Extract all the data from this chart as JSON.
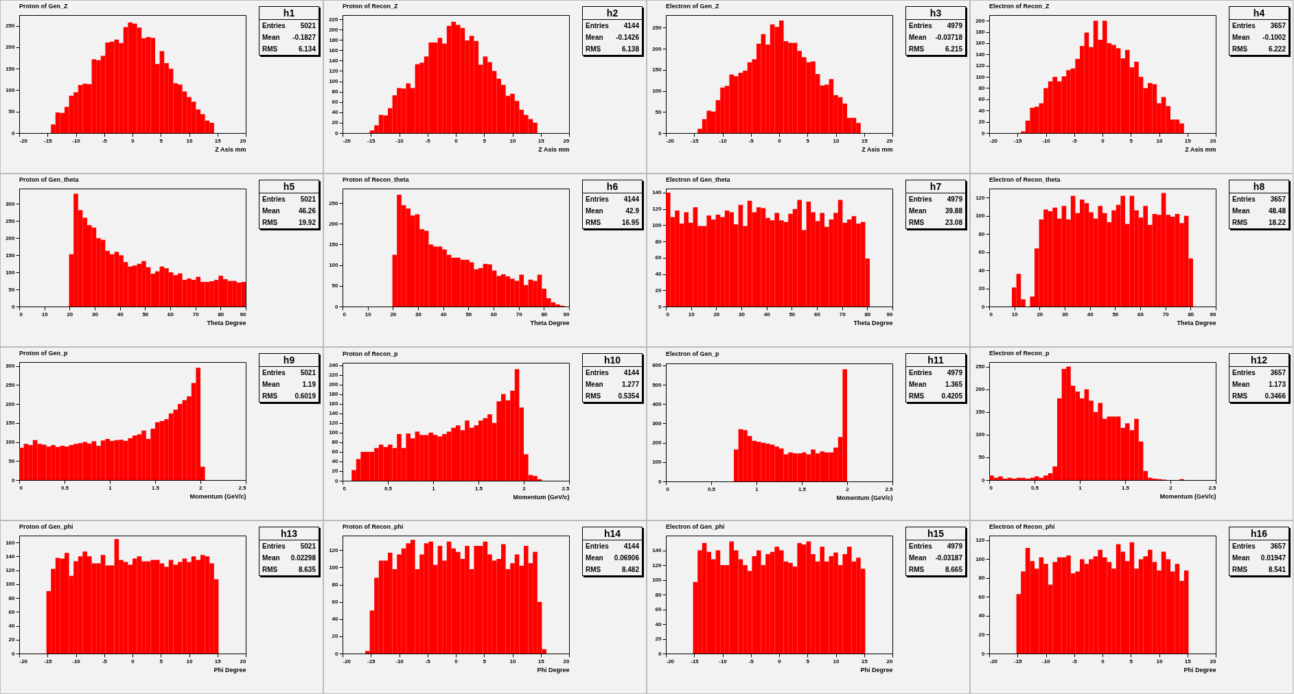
{
  "chart_data": [
    {
      "type": "histogram",
      "title": "Proton of Gen_Z",
      "xlabel": "Z Asis mm",
      "color": "#ff0000",
      "xlim": [
        -20,
        20
      ],
      "xticks": [
        -20,
        -15,
        -10,
        -5,
        0,
        5,
        10,
        15,
        20
      ],
      "ylim": [
        0,
        275
      ],
      "yticks": [
        0,
        50,
        100,
        150,
        200,
        250
      ],
      "annotations": [
        "h1",
        "Entries",
        "5021",
        "Mean",
        "-0.1827",
        "RMS",
        "6.134"
      ],
      "bins": [
        -20,
        -19.2,
        -18.4,
        -17.6,
        -16.8,
        -16,
        -15.2,
        -14.4,
        -13.6,
        -12.8,
        -12,
        -11.2,
        -10.4,
        -9.6,
        -8.8,
        -8,
        -7.2,
        -6.4,
        -5.6,
        -4.8,
        -4,
        -3.2,
        -2.4,
        -1.6,
        -0.8,
        0,
        0.8,
        1.6,
        2.4,
        3.2,
        4,
        4.8,
        5.6,
        6.4,
        7.2,
        8,
        8.8,
        9.6,
        10.4,
        11.2,
        12,
        12.8,
        13.6,
        14.4,
        15.2,
        16,
        16.8,
        17.6,
        18.4,
        19.2,
        20
      ],
      "values": [
        0,
        0,
        0,
        0,
        0,
        0,
        0,
        20,
        48,
        47,
        61,
        87,
        95,
        112,
        115,
        114,
        172,
        170,
        180,
        211,
        213,
        218,
        210,
        247,
        258,
        255,
        246,
        221,
        224,
        222,
        161,
        191,
        163,
        150,
        116,
        113,
        97,
        84,
        73,
        55,
        44,
        29,
        24,
        0,
        0,
        0,
        0,
        0,
        0,
        0
      ]
    },
    {
      "type": "histogram",
      "title": "Proton of Recon_Z",
      "xlabel": "Z Asis mm",
      "color": "#ff0000",
      "xlim": [
        -20,
        20
      ],
      "xticks": [
        -20,
        -15,
        -10,
        -5,
        0,
        5,
        10,
        15,
        20
      ],
      "ylim": [
        0,
        228
      ],
      "yticks": [
        0,
        20,
        40,
        60,
        80,
        100,
        120,
        140,
        160,
        180,
        200,
        220
      ],
      "annotations": [
        "h2",
        "Entries",
        "4144",
        "Mean",
        "-0.1426",
        "RMS",
        "6.138"
      ],
      "bins": [
        -20,
        -19.2,
        -18.4,
        -17.6,
        -16.8,
        -16,
        -15.2,
        -14.4,
        -13.6,
        -12.8,
        -12,
        -11.2,
        -10.4,
        -9.6,
        -8.8,
        -8,
        -7.2,
        -6.4,
        -5.6,
        -4.8,
        -4,
        -3.2,
        -2.4,
        -1.6,
        -0.8,
        0,
        0.8,
        1.6,
        2.4,
        3.2,
        4,
        4.8,
        5.6,
        6.4,
        7.2,
        8,
        8.8,
        9.6,
        10.4,
        11.2,
        12,
        12.8,
        13.6,
        14.4,
        15.2,
        16,
        16.8,
        17.6,
        18.4,
        19.2,
        20
      ],
      "values": [
        0,
        0,
        0,
        0,
        0,
        0,
        5,
        15,
        35,
        34,
        48,
        73,
        87,
        86,
        96,
        87,
        133,
        136,
        148,
        175,
        175,
        184,
        173,
        207,
        215,
        209,
        203,
        179,
        188,
        178,
        132,
        148,
        137,
        120,
        105,
        93,
        72,
        76,
        62,
        45,
        35,
        27,
        20,
        0,
        0,
        0,
        0,
        0,
        0,
        0
      ]
    },
    {
      "type": "histogram",
      "title": "Electron of Gen_Z",
      "xlabel": "Z Asis mm",
      "color": "#ff0000",
      "xlim": [
        -20,
        20
      ],
      "xticks": [
        -20,
        -15,
        -10,
        -5,
        0,
        5,
        10,
        15,
        20
      ],
      "ylim": [
        0,
        280
      ],
      "yticks": [
        0,
        50,
        100,
        150,
        200,
        250
      ],
      "annotations": [
        "h3",
        "Entries",
        "4979",
        "Mean",
        "-0.03718",
        "RMS",
        "6.215"
      ],
      "bins": [
        -20,
        -19.2,
        -18.4,
        -17.6,
        -16.8,
        -16,
        -15.2,
        -14.4,
        -13.6,
        -12.8,
        -12,
        -11.2,
        -10.4,
        -9.6,
        -8.8,
        -8,
        -7.2,
        -6.4,
        -5.6,
        -4.8,
        -4,
        -3.2,
        -2.4,
        -1.6,
        -0.8,
        0,
        0.8,
        1.6,
        2.4,
        3.2,
        4,
        4.8,
        5.6,
        6.4,
        7.2,
        8,
        8.8,
        9.6,
        10.4,
        11.2,
        12,
        12.8,
        13.6,
        14.4,
        15.2,
        16,
        16.8,
        17.6,
        18.4,
        19.2,
        20
      ],
      "values": [
        0,
        0,
        0,
        0,
        0,
        0,
        0,
        10,
        33,
        53,
        51,
        78,
        108,
        112,
        139,
        135,
        143,
        148,
        168,
        175,
        212,
        235,
        210,
        258,
        252,
        267,
        218,
        214,
        214,
        195,
        180,
        168,
        170,
        140,
        113,
        115,
        128,
        90,
        85,
        70,
        36,
        36,
        24,
        0,
        0,
        0,
        0,
        0,
        0,
        0
      ]
    },
    {
      "type": "histogram",
      "title": "Electron of Recon_Z",
      "xlabel": "Z Asis mm",
      "color": "#ff0000",
      "xlim": [
        -20,
        20
      ],
      "xticks": [
        -20,
        -15,
        -10,
        -5,
        0,
        5,
        10,
        15,
        20
      ],
      "ylim": [
        0,
        210
      ],
      "yticks": [
        0,
        20,
        40,
        60,
        80,
        100,
        120,
        140,
        160,
        180,
        200
      ],
      "annotations": [
        "h4",
        "Entries",
        "3657",
        "Mean",
        "-0.1002",
        "RMS",
        "6.222"
      ],
      "bins": [
        -20,
        -19.2,
        -18.4,
        -17.6,
        -16.8,
        -16,
        -15.2,
        -14.4,
        -13.6,
        -12.8,
        -12,
        -11.2,
        -10.4,
        -9.6,
        -8.8,
        -8,
        -7.2,
        -6.4,
        -5.6,
        -4.8,
        -4,
        -3.2,
        -2.4,
        -1.6,
        -0.8,
        0,
        0.8,
        1.6,
        2.4,
        3.2,
        4,
        4.8,
        5.6,
        6.4,
        7.2,
        8,
        8.8,
        9.6,
        10.4,
        11.2,
        12,
        12.8,
        13.6,
        14.4,
        15.2,
        16,
        16.8,
        17.6,
        18.4,
        19.2,
        20
      ],
      "values": [
        0,
        0,
        0,
        0,
        0,
        0,
        0,
        3,
        22,
        45,
        47,
        53,
        80,
        92,
        100,
        92,
        101,
        112,
        115,
        132,
        155,
        179,
        153,
        200,
        166,
        200,
        160,
        157,
        151,
        133,
        148,
        117,
        127,
        100,
        80,
        89,
        87,
        53,
        64,
        48,
        24,
        24,
        17,
        0,
        0,
        0,
        0,
        0,
        0,
        0
      ]
    },
    {
      "type": "histogram",
      "title": "Proton of Gen_theta",
      "xlabel": "Theta Degree",
      "color": "#ff0000",
      "xlim": [
        0,
        90
      ],
      "xticks": [
        0,
        10,
        20,
        30,
        40,
        50,
        60,
        70,
        80,
        90
      ],
      "ylim": [
        0,
        345
      ],
      "yticks": [
        0,
        50,
        100,
        150,
        200,
        250,
        300
      ],
      "annotations": [
        "h5",
        "Entries",
        "5021",
        "Mean",
        "46.26",
        "RMS",
        "19.92"
      ],
      "bins": [
        0,
        1.8,
        3.6,
        5.4,
        7.2,
        9,
        10.8,
        12.6,
        14.4,
        16.2,
        18,
        19.8,
        21.6,
        23.4,
        25.2,
        27,
        28.8,
        30.6,
        32.4,
        34.2,
        36,
        37.8,
        39.6,
        41.4,
        43.2,
        45,
        46.8,
        48.6,
        50.4,
        52.2,
        54,
        55.8,
        57.6,
        59.4,
        61.2,
        63,
        64.8,
        66.6,
        68.4,
        70.2,
        72,
        73.8,
        75.6,
        77.4,
        79.2,
        81,
        82.8,
        84.6,
        86.4,
        88.2,
        90
      ],
      "values": [
        0,
        0,
        0,
        0,
        0,
        0,
        0,
        0,
        0,
        0,
        0,
        153,
        330,
        282,
        260,
        238,
        231,
        200,
        195,
        163,
        153,
        160,
        150,
        130,
        117,
        120,
        125,
        133,
        115,
        96,
        103,
        117,
        112,
        100,
        92,
        97,
        78,
        82,
        78,
        87,
        72,
        72,
        74,
        78,
        90,
        80,
        75,
        75,
        70,
        72
      ]
    },
    {
      "type": "histogram",
      "title": "Proton of Recon_theta",
      "xlabel": "Theta Degree",
      "color": "#ff0000",
      "xlim": [
        0,
        90
      ],
      "xticks": [
        0,
        10,
        20,
        30,
        40,
        50,
        60,
        70,
        80,
        90
      ],
      "ylim": [
        0,
        285
      ],
      "yticks": [
        0,
        50,
        100,
        150,
        200,
        250
      ],
      "annotations": [
        "h6",
        "Entries",
        "4144",
        "Mean",
        "42.9",
        "RMS",
        "16.95"
      ],
      "bins": [
        0,
        1.8,
        3.6,
        5.4,
        7.2,
        9,
        10.8,
        12.6,
        14.4,
        16.2,
        18,
        19.8,
        21.6,
        23.4,
        25.2,
        27,
        28.8,
        30.6,
        32.4,
        34.2,
        36,
        37.8,
        39.6,
        41.4,
        43.2,
        45,
        46.8,
        48.6,
        50.4,
        52.2,
        54,
        55.8,
        57.6,
        59.4,
        61.2,
        63,
        64.8,
        66.6,
        68.4,
        70.2,
        72,
        73.8,
        75.6,
        77.4,
        79.2,
        81,
        82.8,
        84.6,
        86.4,
        88.2,
        90
      ],
      "values": [
        0,
        0,
        0,
        0,
        0,
        0,
        0,
        0,
        0,
        0,
        0,
        125,
        270,
        245,
        237,
        220,
        223,
        187,
        183,
        150,
        145,
        145,
        138,
        125,
        118,
        118,
        113,
        113,
        107,
        90,
        93,
        103,
        102,
        87,
        74,
        78,
        73,
        67,
        62,
        77,
        52,
        65,
        62,
        77,
        43,
        20,
        10,
        5,
        2,
        0
      ]
    },
    {
      "type": "histogram",
      "title": "Electron of Gen_theta",
      "xlabel": "Theta Degree",
      "color": "#ff0000",
      "xlim": [
        0,
        90
      ],
      "xticks": [
        0,
        10,
        20,
        30,
        40,
        50,
        60,
        70,
        80,
        90
      ],
      "ylim": [
        0,
        145
      ],
      "yticks": [
        0,
        20,
        40,
        60,
        80,
        100,
        120,
        140
      ],
      "annotations": [
        "h7",
        "Entries",
        "4979",
        "Mean",
        "39.88",
        "RMS",
        "23.08"
      ],
      "bins": [
        0,
        1.8,
        3.6,
        5.4,
        7.2,
        9,
        10.8,
        12.6,
        14.4,
        16.2,
        18,
        19.8,
        21.6,
        23.4,
        25.2,
        27,
        28.8,
        30.6,
        32.4,
        34.2,
        36,
        37.8,
        39.6,
        41.4,
        43.2,
        45,
        46.8,
        48.6,
        50.4,
        52.2,
        54,
        55.8,
        57.6,
        59.4,
        61.2,
        63,
        64.8,
        66.6,
        68.4,
        70.2,
        72,
        73.8,
        75.6,
        77.4,
        79.2,
        81,
        82.8,
        84.6,
        86.4,
        88.2,
        90
      ],
      "values": [
        140,
        110,
        118,
        102,
        116,
        103,
        122,
        99,
        99,
        112,
        107,
        113,
        110,
        118,
        116,
        101,
        125,
        99,
        130,
        116,
        122,
        121,
        109,
        106,
        115,
        106,
        104,
        114,
        120,
        131,
        94,
        129,
        116,
        105,
        115,
        98,
        107,
        115,
        131,
        103,
        107,
        111,
        102,
        104,
        59,
        0,
        0,
        0,
        0,
        0
      ]
    },
    {
      "type": "histogram",
      "title": "Electron of Recon_theta",
      "xlabel": "Theta Degree",
      "color": "#ff0000",
      "xlim": [
        0,
        90
      ],
      "xticks": [
        0,
        10,
        20,
        30,
        40,
        50,
        60,
        70,
        80,
        90
      ],
      "ylim": [
        0,
        130
      ],
      "yticks": [
        0,
        20,
        40,
        60,
        80,
        100,
        120
      ],
      "annotations": [
        "h8",
        "Entries",
        "3657",
        "Mean",
        "48.48",
        "RMS",
        "18.22"
      ],
      "bins": [
        0,
        1.8,
        3.6,
        5.4,
        7.2,
        9,
        10.8,
        12.6,
        14.4,
        16.2,
        18,
        19.8,
        21.6,
        23.4,
        25.2,
        27,
        28.8,
        30.6,
        32.4,
        34.2,
        36,
        37.8,
        39.6,
        41.4,
        43.2,
        45,
        46.8,
        48.6,
        50.4,
        52.2,
        54,
        55.8,
        57.6,
        59.4,
        61.2,
        63,
        64.8,
        66.6,
        68.4,
        70.2,
        72,
        73.8,
        75.6,
        77.4,
        79.2,
        81,
        82.8,
        84.6,
        86.4,
        88.2,
        90
      ],
      "values": [
        0,
        0,
        0,
        0,
        0,
        21,
        36,
        8,
        0,
        11,
        64,
        96,
        107,
        105,
        109,
        97,
        111,
        96,
        122,
        103,
        118,
        114,
        104,
        97,
        111,
        103,
        93,
        106,
        112,
        122,
        91,
        122,
        106,
        98,
        111,
        90,
        102,
        101,
        125,
        101,
        99,
        102,
        92,
        100,
        53,
        0,
        0,
        0,
        0,
        0
      ]
    },
    {
      "type": "histogram",
      "title": "Proton of Gen_p",
      "xlabel": "Momentum (GeV/c)",
      "color": "#ff0000",
      "xlim": [
        0,
        2.5
      ],
      "xticks": [
        0,
        0.5,
        1,
        1.5,
        2,
        2.5
      ],
      "ylim": [
        0,
        310
      ],
      "yticks": [
        0,
        50,
        100,
        150,
        200,
        250,
        300
      ],
      "annotations": [
        "h9",
        "Entries",
        "5021",
        "Mean",
        "1.19",
        "RMS",
        "0.6019"
      ],
      "bins": [
        0,
        0.05,
        0.1,
        0.15,
        0.2,
        0.25,
        0.3,
        0.35,
        0.4,
        0.45,
        0.5,
        0.55,
        0.6,
        0.65,
        0.7,
        0.75,
        0.8,
        0.85,
        0.9,
        0.95,
        1,
        1.05,
        1.1,
        1.15,
        1.2,
        1.25,
        1.3,
        1.35,
        1.4,
        1.45,
        1.5,
        1.55,
        1.6,
        1.65,
        1.7,
        1.75,
        1.8,
        1.85,
        1.9,
        1.95,
        2,
        2.05,
        2.1,
        2.15,
        2.2,
        2.25,
        2.3,
        2.35,
        2.4,
        2.45,
        2.5
      ],
      "values": [
        85,
        95,
        92,
        105,
        95,
        93,
        88,
        92,
        87,
        90,
        88,
        92,
        95,
        97,
        100,
        96,
        102,
        90,
        104,
        108,
        103,
        105,
        106,
        103,
        110,
        117,
        120,
        130,
        108,
        135,
        152,
        155,
        160,
        175,
        185,
        200,
        210,
        220,
        255,
        295,
        35,
        0,
        0,
        0,
        0,
        0,
        0,
        0,
        0,
        0
      ]
    },
    {
      "type": "histogram",
      "title": "Proton of Recon_p",
      "xlabel": "Momentum (GeV/c)",
      "color": "#ff0000",
      "xlim": [
        0,
        2.5
      ],
      "xticks": [
        0,
        0.5,
        1,
        1.5,
        2,
        2.5
      ],
      "ylim": [
        0,
        245
      ],
      "yticks": [
        0,
        20,
        40,
        60,
        80,
        100,
        120,
        140,
        160,
        180,
        200,
        220,
        240
      ],
      "annotations": [
        "h10",
        "Entries",
        "4144",
        "Mean",
        "1.277",
        "RMS",
        "0.5354"
      ],
      "bins": [
        0,
        0.05,
        0.1,
        0.15,
        0.2,
        0.25,
        0.3,
        0.35,
        0.4,
        0.45,
        0.5,
        0.55,
        0.6,
        0.65,
        0.7,
        0.75,
        0.8,
        0.85,
        0.9,
        0.95,
        1,
        1.05,
        1.1,
        1.15,
        1.2,
        1.25,
        1.3,
        1.35,
        1.4,
        1.45,
        1.5,
        1.55,
        1.6,
        1.65,
        1.7,
        1.75,
        1.8,
        1.85,
        1.9,
        1.95,
        2,
        2.05,
        2.1,
        2.15,
        2.2,
        2.25,
        2.3,
        2.35,
        2.4,
        2.45,
        2.5
      ],
      "values": [
        0,
        0,
        22,
        45,
        60,
        60,
        60,
        68,
        75,
        70,
        75,
        68,
        97,
        68,
        98,
        88,
        102,
        95,
        95,
        100,
        95,
        92,
        97,
        102,
        110,
        115,
        105,
        125,
        110,
        115,
        125,
        130,
        138,
        120,
        165,
        180,
        167,
        187,
        232,
        152,
        55,
        12,
        10,
        3,
        0,
        0,
        0,
        0,
        0,
        0
      ]
    },
    {
      "type": "histogram",
      "title": "Electron of Gen_p",
      "xlabel": "Momentum (GeV/c)",
      "color": "#ff0000",
      "xlim": [
        0,
        2.5
      ],
      "xticks": [
        0,
        0.5,
        1,
        1.5,
        2,
        2.5
      ],
      "ylim": [
        0,
        610
      ],
      "yticks": [
        0,
        100,
        200,
        300,
        400,
        500,
        600
      ],
      "annotations": [
        "h11",
        "Entries",
        "4979",
        "Mean",
        "1.365",
        "RMS",
        "0.4205"
      ],
      "bins": [
        0,
        0.05,
        0.1,
        0.15,
        0.2,
        0.25,
        0.3,
        0.35,
        0.4,
        0.45,
        0.5,
        0.55,
        0.6,
        0.65,
        0.7,
        0.75,
        0.8,
        0.85,
        0.9,
        0.95,
        1,
        1.05,
        1.1,
        1.15,
        1.2,
        1.25,
        1.3,
        1.35,
        1.4,
        1.45,
        1.5,
        1.55,
        1.6,
        1.65,
        1.7,
        1.75,
        1.8,
        1.85,
        1.9,
        1.95,
        2,
        2.05,
        2.1,
        2.15,
        2.2,
        2.25,
        2.3,
        2.35,
        2.4,
        2.45,
        2.5
      ],
      "values": [
        0,
        0,
        0,
        0,
        0,
        0,
        0,
        0,
        0,
        0,
        0,
        0,
        0,
        0,
        0,
        165,
        270,
        265,
        235,
        210,
        205,
        200,
        195,
        190,
        180,
        170,
        140,
        150,
        145,
        145,
        150,
        140,
        165,
        145,
        155,
        150,
        150,
        175,
        230,
        580,
        0,
        0,
        0,
        0,
        0,
        0,
        0,
        0,
        0,
        0
      ]
    },
    {
      "type": "histogram",
      "title": "Electron of Recon_p",
      "xlabel": "Momentum (GeV/c)",
      "color": "#ff0000",
      "xlim": [
        0,
        2.5
      ],
      "xticks": [
        0,
        0.5,
        1,
        1.5,
        2,
        2.5
      ],
      "ylim": [
        0,
        260
      ],
      "yticks": [
        0,
        50,
        100,
        150,
        200,
        250
      ],
      "annotations": [
        "h12",
        "Entries",
        "3657",
        "Mean",
        "1.173",
        "RMS",
        "0.3466"
      ],
      "bins": [
        0,
        0.05,
        0.1,
        0.15,
        0.2,
        0.25,
        0.3,
        0.35,
        0.4,
        0.45,
        0.5,
        0.55,
        0.6,
        0.65,
        0.7,
        0.75,
        0.8,
        0.85,
        0.9,
        0.95,
        1,
        1.05,
        1.1,
        1.15,
        1.2,
        1.25,
        1.3,
        1.35,
        1.4,
        1.45,
        1.5,
        1.55,
        1.6,
        1.65,
        1.7,
        1.75,
        1.8,
        1.85,
        1.9,
        1.95,
        2,
        2.05,
        2.1,
        2.15,
        2.2,
        2.25,
        2.3,
        2.35,
        2.4,
        2.45,
        2.5
      ],
      "values": [
        10,
        5,
        8,
        3,
        5,
        3,
        5,
        5,
        3,
        5,
        8,
        5,
        10,
        15,
        30,
        180,
        245,
        250,
        208,
        195,
        180,
        200,
        175,
        150,
        170,
        135,
        140,
        140,
        140,
        115,
        125,
        110,
        135,
        85,
        20,
        5,
        3,
        2,
        1,
        0,
        0,
        0,
        2,
        0,
        0,
        0,
        0,
        0,
        0,
        0
      ]
    },
    {
      "type": "histogram",
      "title": "Proton of Gen_phi",
      "xlabel": "Phi Degree",
      "color": "#ff0000",
      "xlim": [
        -20,
        20
      ],
      "xticks": [
        -20,
        -15,
        -10,
        -5,
        0,
        5,
        10,
        15,
        20
      ],
      "ylim": [
        0,
        170
      ],
      "yticks": [
        0,
        20,
        40,
        60,
        80,
        100,
        120,
        140,
        160
      ],
      "annotations": [
        "h13",
        "Entries",
        "5021",
        "Mean",
        "0.02298",
        "RMS",
        "8.635"
      ],
      "bins": [
        -20,
        -19.2,
        -18.4,
        -17.6,
        -16.8,
        -16,
        -15.2,
        -14.4,
        -13.6,
        -12.8,
        -12,
        -11.2,
        -10.4,
        -9.6,
        -8.8,
        -8,
        -7.2,
        -6.4,
        -5.6,
        -4.8,
        -4,
        -3.2,
        -2.4,
        -1.6,
        -0.8,
        0,
        0.8,
        1.6,
        2.4,
        3.2,
        4,
        4.8,
        5.6,
        6.4,
        7.2,
        8,
        8.8,
        9.6,
        10.4,
        11.2,
        12,
        12.8,
        13.6,
        14.4,
        15.2,
        16,
        16.8,
        17.6,
        18.4,
        19.2,
        20
      ],
      "values": [
        0,
        0,
        0,
        0,
        0,
        0,
        90,
        122,
        138,
        137,
        145,
        112,
        133,
        140,
        147,
        140,
        130,
        130,
        142,
        127,
        127,
        165,
        135,
        132,
        128,
        137,
        140,
        133,
        133,
        135,
        135,
        130,
        125,
        135,
        128,
        132,
        137,
        132,
        140,
        135,
        142,
        140,
        130,
        107,
        0,
        0,
        0,
        0,
        0,
        0
      ]
    },
    {
      "type": "histogram",
      "title": "Proton of Recon_phi",
      "xlabel": "Phi Degree",
      "color": "#ff0000",
      "xlim": [
        -20,
        20
      ],
      "xticks": [
        -20,
        -15,
        -10,
        -5,
        0,
        5,
        10,
        15,
        20
      ],
      "ylim": [
        0,
        137
      ],
      "yticks": [
        0,
        20,
        40,
        60,
        80,
        100,
        120
      ],
      "annotations": [
        "h14",
        "Entries",
        "4144",
        "Mean",
        "0.06906",
        "RMS",
        "8.482"
      ],
      "bins": [
        -20,
        -19.2,
        -18.4,
        -17.6,
        -16.8,
        -16,
        -15.2,
        -14.4,
        -13.6,
        -12.8,
        -12,
        -11.2,
        -10.4,
        -9.6,
        -8.8,
        -8,
        -7.2,
        -6.4,
        -5.6,
        -4.8,
        -4,
        -3.2,
        -2.4,
        -1.6,
        -0.8,
        0,
        0.8,
        1.6,
        2.4,
        3.2,
        4,
        4.8,
        5.6,
        6.4,
        7.2,
        8,
        8.8,
        9.6,
        10.4,
        11.2,
        12,
        12.8,
        13.6,
        14.4,
        15.2,
        16,
        16.8,
        17.6,
        18.4,
        19.2,
        20
      ],
      "values": [
        0,
        0,
        0,
        0,
        0,
        3,
        50,
        88,
        108,
        108,
        117,
        98,
        115,
        122,
        128,
        132,
        98,
        115,
        128,
        130,
        103,
        125,
        108,
        130,
        122,
        118,
        110,
        125,
        98,
        125,
        125,
        130,
        115,
        108,
        110,
        127,
        98,
        105,
        115,
        102,
        125,
        105,
        118,
        60,
        5,
        0,
        0,
        0,
        0,
        0
      ]
    },
    {
      "type": "histogram",
      "title": "Electron of Gen_phi",
      "xlabel": "Phi Degree",
      "color": "#ff0000",
      "xlim": [
        -20,
        20
      ],
      "xticks": [
        -20,
        -15,
        -10,
        -5,
        0,
        5,
        10,
        15,
        20
      ],
      "ylim": [
        0,
        160
      ],
      "yticks": [
        0,
        20,
        40,
        60,
        80,
        100,
        120,
        140
      ],
      "annotations": [
        "h15",
        "Entries",
        "4979",
        "Mean",
        "-0.03187",
        "RMS",
        "8.665"
      ],
      "bins": [
        -20,
        -19.2,
        -18.4,
        -17.6,
        -16.8,
        -16,
        -15.2,
        -14.4,
        -13.6,
        -12.8,
        -12,
        -11.2,
        -10.4,
        -9.6,
        -8.8,
        -8,
        -7.2,
        -6.4,
        -5.6,
        -4.8,
        -4,
        -3.2,
        -2.4,
        -1.6,
        -0.8,
        0,
        0.8,
        1.6,
        2.4,
        3.2,
        4,
        4.8,
        5.6,
        6.4,
        7.2,
        8,
        8.8,
        9.6,
        10.4,
        11.2,
        12,
        12.8,
        13.6,
        14.4,
        15.2,
        16,
        16.8,
        17.6,
        18.4,
        19.2,
        20
      ],
      "values": [
        0,
        0,
        0,
        0,
        0,
        0,
        97,
        140,
        150,
        138,
        128,
        140,
        120,
        120,
        152,
        140,
        128,
        120,
        112,
        132,
        140,
        120,
        135,
        138,
        145,
        140,
        125,
        123,
        118,
        150,
        148,
        152,
        135,
        125,
        145,
        125,
        132,
        137,
        120,
        135,
        145,
        125,
        130,
        115,
        0,
        0,
        0,
        0,
        0,
        0
      ]
    },
    {
      "type": "histogram",
      "title": "Electron of Recon_phi",
      "xlabel": "Phi Degree",
      "color": "#ff0000",
      "xlim": [
        -20,
        20
      ],
      "xticks": [
        -20,
        -15,
        -10,
        -5,
        0,
        5,
        10,
        15,
        20
      ],
      "ylim": [
        0,
        125
      ],
      "yticks": [
        0,
        20,
        40,
        60,
        80,
        100,
        120
      ],
      "annotations": [
        "h16",
        "Entries",
        "3657",
        "Mean",
        "0.01947",
        "RMS",
        "8.541"
      ],
      "bins": [
        -20,
        -19.2,
        -18.4,
        -17.6,
        -16.8,
        -16,
        -15.2,
        -14.4,
        -13.6,
        -12.8,
        -12,
        -11.2,
        -10.4,
        -9.6,
        -8.8,
        -8,
        -7.2,
        -6.4,
        -5.6,
        -4.8,
        -4,
        -3.2,
        -2.4,
        -1.6,
        -0.8,
        0,
        0.8,
        1.6,
        2.4,
        3.2,
        4,
        4.8,
        5.6,
        6.4,
        7.2,
        8,
        8.8,
        9.6,
        10.4,
        11.2,
        12,
        12.8,
        13.6,
        14.4,
        15.2,
        16,
        16.8,
        17.6,
        18.4,
        19.2,
        20
      ],
      "values": [
        0,
        0,
        0,
        0,
        0,
        0,
        63,
        87,
        112,
        98,
        90,
        102,
        95,
        73,
        97,
        102,
        102,
        104,
        85,
        87,
        100,
        95,
        100,
        103,
        110,
        102,
        97,
        90,
        116,
        108,
        98,
        118,
        90,
        100,
        103,
        110,
        97,
        88,
        108,
        100,
        87,
        95,
        77,
        88,
        0,
        0,
        0,
        0,
        0,
        0
      ]
    }
  ]
}
